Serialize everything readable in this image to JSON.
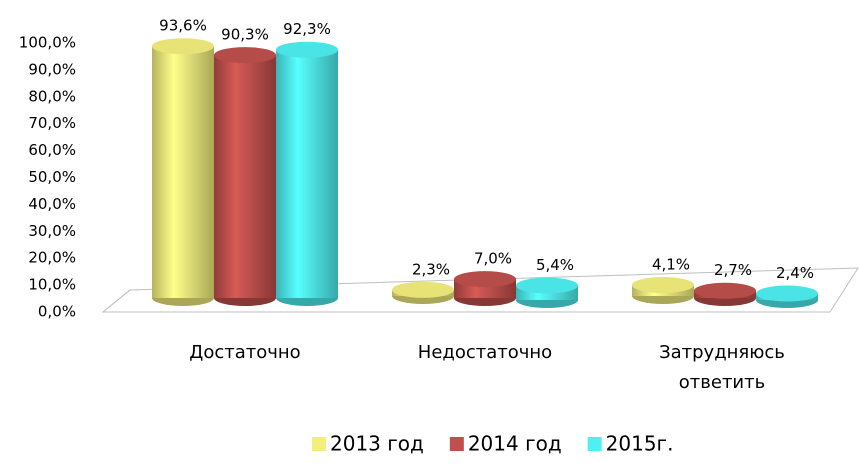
{
  "chart_data": {
    "type": "bar3d",
    "categories": [
      "Достаточно",
      "Недостаточно",
      "Затрудняюсь ответить"
    ],
    "series": [
      {
        "name": "2013 год",
        "color": "#f3ef7c",
        "values": [
          93.6,
          2.3,
          4.1
        ],
        "value_labels": [
          "93,6%",
          "2,3%",
          "4,1%"
        ]
      },
      {
        "name": "2014 год",
        "color": "#c0504d",
        "values": [
          90.3,
          7.0,
          2.7
        ],
        "value_labels": [
          "90,3%",
          "7,0%",
          "2,7%"
        ]
      },
      {
        "name": "2015г.",
        "color": "#4ff0f2",
        "values": [
          92.3,
          5.4,
          2.4
        ],
        "value_labels": [
          "92,3%",
          "5,4%",
          "2,4%"
        ]
      }
    ],
    "ylim": [
      0,
      100
    ],
    "yticks": [
      {
        "value": 0,
        "label": "0,0%"
      },
      {
        "value": 10,
        "label": "10,0%"
      },
      {
        "value": 20,
        "label": "20,0%"
      },
      {
        "value": 30,
        "label": "30,0%"
      },
      {
        "value": 40,
        "label": "40,0%"
      },
      {
        "value": 50,
        "label": "50,0%"
      },
      {
        "value": 60,
        "label": "60,0%"
      },
      {
        "value": 70,
        "label": "70,0%"
      },
      {
        "value": 80,
        "label": "80,0%"
      },
      {
        "value": 90,
        "label": "90,0%"
      },
      {
        "value": 100,
        "label": "100,0%"
      }
    ],
    "legend": "bottom"
  }
}
